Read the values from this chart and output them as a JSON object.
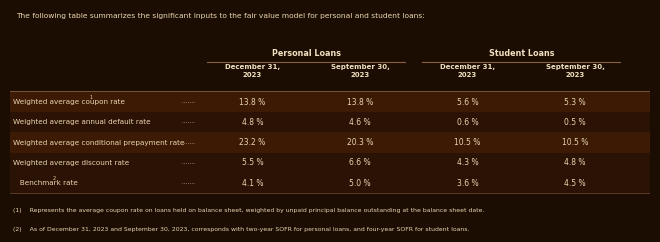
{
  "title": "The following table summarizes the significant inputs to the fair value model for personal and student loans:",
  "background_color": "#1c0d03",
  "text_color": "#e8d5b0",
  "header_text_color": "#f0e0c0",
  "col_group_headers": [
    "Personal Loans",
    "Student Loans"
  ],
  "col_headers": [
    "December 31,\n2023",
    "September 30,\n2023",
    "December 31,\n2023",
    "September 30,\n2023"
  ],
  "row_labels": [
    "Weighted average coupon rate(1)",
    "Weighted average annual default rate",
    "Weighted average conditional prepayment rate",
    "Weighted average discount rate",
    "   Benchmark rate(2)"
  ],
  "superscripts_col": [
    true,
    false,
    false,
    false,
    true
  ],
  "data": [
    [
      "13.8 %",
      "13.8 %",
      "5.6 %",
      "5.3 %"
    ],
    [
      "4.8 %",
      "4.6 %",
      "0.6 %",
      "0.5 %"
    ],
    [
      "23.2 %",
      "20.3 %",
      "10.5 %",
      "10.5 %"
    ],
    [
      "5.5 %",
      "6.6 %",
      "4.3 %",
      "4.8 %"
    ],
    [
      "4.1 %",
      "5.0 %",
      "3.6 %",
      "4.5 %"
    ]
  ],
  "footnotes": [
    "(1)    Represents the average coupon rate on loans held on balance sheet, weighted by unpaid principal balance outstanding at the balance sheet date.",
    "(2)    As of December 31, 2023 and September 30, 2023, corresponds with two-year SOFR for personal loans, and four-year SOFR for student loans."
  ],
  "row_colors": [
    "#3d1a04",
    "#2a1204",
    "#3d1a04",
    "#2a1204",
    "#2a1204"
  ],
  "line_color": "#8b6040"
}
